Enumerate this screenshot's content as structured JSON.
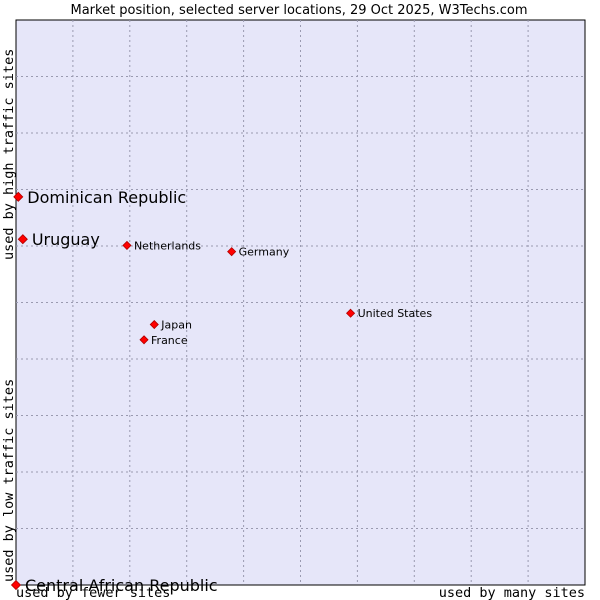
{
  "chart_data": {
    "type": "scatter",
    "title": "Market position, selected server locations, 29 Oct 2025, W3Techs.com",
    "xlabel_left": "used by fewer sites",
    "xlabel_right": "used by many sites",
    "ylabel_top": "used by high traffic sites",
    "ylabel_bottom": "used by low traffic sites",
    "xlim": [
      0,
      100
    ],
    "ylim": [
      0,
      100
    ],
    "grid": true,
    "colors": {
      "plot_bg": "#e6e6f9",
      "grid": "#9a9ab0",
      "marker": "#ff0000",
      "marker_edge": "#b00000"
    },
    "points": [
      {
        "label": "Dominican Republic",
        "x": 0.4,
        "y": 68.7,
        "size": "large"
      },
      {
        "label": "Uruguay",
        "x": 1.2,
        "y": 61.2,
        "size": "large"
      },
      {
        "label": "Netherlands",
        "x": 19.5,
        "y": 60.1,
        "size": "small"
      },
      {
        "label": "Germany",
        "x": 37.9,
        "y": 59.0,
        "size": "small"
      },
      {
        "label": "United States",
        "x": 58.8,
        "y": 48.1,
        "size": "small"
      },
      {
        "label": "Japan",
        "x": 24.3,
        "y": 46.1,
        "size": "small"
      },
      {
        "label": "France",
        "x": 22.5,
        "y": 43.4,
        "size": "small"
      }
    ],
    "extra_points": [
      {
        "label": "Central African Republic",
        "x": 0.0,
        "y": 0.0,
        "size": "large"
      }
    ]
  }
}
